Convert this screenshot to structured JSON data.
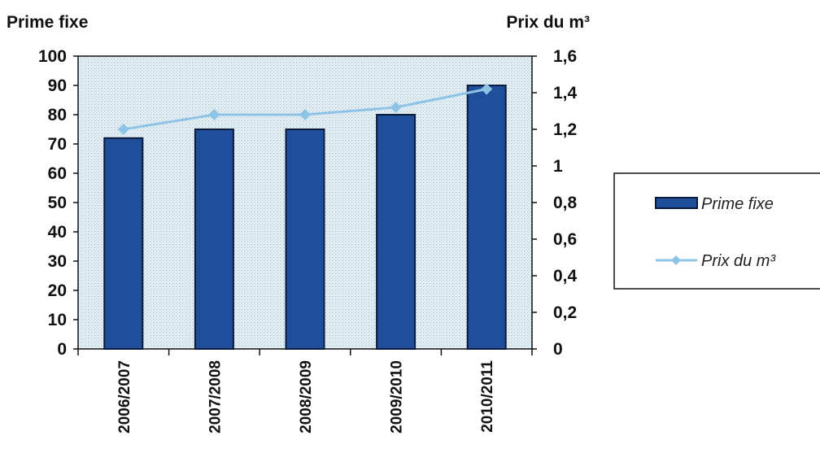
{
  "chart_data": {
    "type": "bar",
    "categories": [
      "2006/2007",
      "2007/2008",
      "2008/2009",
      "2009/2010",
      "2010/2011"
    ],
    "series": [
      {
        "name": "Prime fixe",
        "type": "bar",
        "axis": "left",
        "values": [
          72,
          75,
          75,
          80,
          90
        ]
      },
      {
        "name": "Prix du m³",
        "type": "line",
        "axis": "right",
        "values": [
          1.2,
          1.28,
          1.28,
          1.32,
          1.42
        ]
      }
    ],
    "ylabel_left": "Prime fixe",
    "ylabel_right": "Prix du m³",
    "ylim_left": [
      0,
      100
    ],
    "ylim_right": [
      0,
      1.6
    ],
    "yticks_left": [
      "0",
      "10",
      "20",
      "30",
      "40",
      "50",
      "60",
      "70",
      "80",
      "90",
      "100"
    ],
    "yticks_right": [
      "0",
      "0,2",
      "0,4",
      "0,6",
      "0,8",
      "1",
      "1,2",
      "1,4",
      "1,6"
    ],
    "legend": [
      "Prime fixe",
      "Prix du m³"
    ],
    "legend_position": "right",
    "grid": false,
    "colors": {
      "bar": "#1f4e9a",
      "bar_edge": "#0a1a3a",
      "line": "#8ec3e6",
      "plot_bg": "#d9ecf3"
    }
  }
}
